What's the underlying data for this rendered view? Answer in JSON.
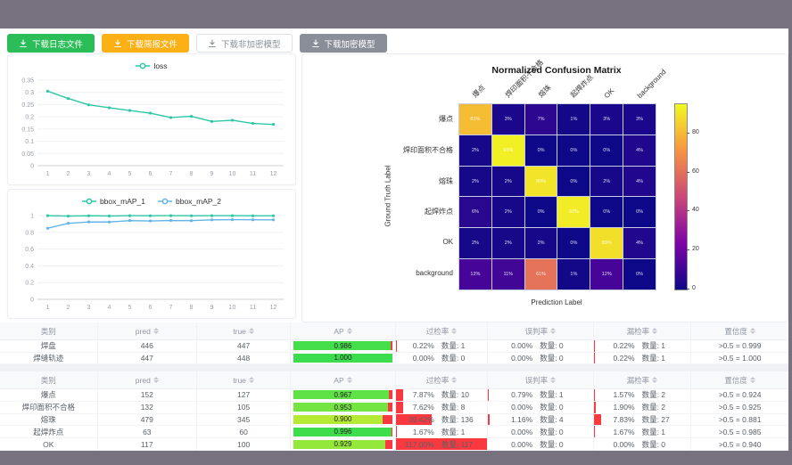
{
  "palette": {
    "frame": "#787180",
    "accent_teal": "#2ec7a5",
    "accent_blue": "#63b4e4",
    "btn_green": "#2bbe58",
    "btn_orange": "#fbb016",
    "btn_gray": "#8a8e98",
    "bar_red": "#f9383f"
  },
  "toolbar": {
    "buttons": [
      {
        "label": "下载日志文件",
        "style": "green"
      },
      {
        "label": "下载简报文件",
        "style": "orange"
      },
      {
        "label": "下载非加密模型",
        "style": "plain"
      },
      {
        "label": "下载加密模型",
        "style": "gray"
      }
    ]
  },
  "chart_data": [
    {
      "id": "loss",
      "type": "line",
      "legend": [
        "loss"
      ],
      "x": [
        1,
        2,
        3,
        4,
        5,
        6,
        7,
        8,
        9,
        10,
        11,
        12
      ],
      "series": [
        {
          "name": "loss",
          "color": "#2ec7a5",
          "values": [
            0.305,
            0.275,
            0.249,
            0.237,
            0.226,
            0.215,
            0.197,
            0.202,
            0.181,
            0.186,
            0.173,
            0.169
          ]
        }
      ],
      "ylim": [
        0,
        0.35
      ],
      "ytick_values": [
        0,
        0.05,
        0.1,
        0.15,
        0.2,
        0.25,
        0.3,
        0.35
      ],
      "ytick_labels": [
        "0",
        "0.05",
        "0.1",
        "0.15",
        "0.2",
        "0.25",
        "0.3",
        "0.35"
      ],
      "grid": true,
      "legend_position": "top"
    },
    {
      "id": "bbox_mAP",
      "type": "line",
      "legend": [
        "bbox_mAP_1",
        "bbox_mAP_2"
      ],
      "x": [
        1,
        2,
        3,
        4,
        5,
        6,
        7,
        8,
        9,
        10,
        11,
        12
      ],
      "series": [
        {
          "name": "bbox_mAP_1",
          "color": "#2ec7a5",
          "values": [
            0.999,
            0.994,
            0.998,
            0.995,
            0.999,
            0.998,
            0.999,
            0.998,
            0.999,
            0.999,
            0.998,
            0.998
          ]
        },
        {
          "name": "bbox_mAP_2",
          "color": "#63b4e4",
          "values": [
            0.849,
            0.908,
            0.924,
            0.923,
            0.94,
            0.936,
            0.941,
            0.939,
            0.949,
            0.951,
            0.95,
            0.949
          ]
        }
      ],
      "ylim": [
        0,
        1
      ],
      "ytick_values": [
        0,
        0.2,
        0.4,
        0.6,
        0.8,
        1
      ],
      "ytick_labels": [
        "0",
        "0.2",
        "0.4",
        "0.6",
        "0.8",
        "1"
      ],
      "grid": true,
      "legend_position": "top"
    },
    {
      "id": "confusion",
      "type": "heatmap",
      "title": "Normalized Confusion Matrix",
      "xlabel": "Prediction Label",
      "ylabel": "Ground Truth Label",
      "labels": [
        "爆点",
        "焊印面积不合格",
        "熔珠",
        "起焊炸点",
        "OK",
        "background"
      ],
      "values_percent": [
        [
          81,
          3,
          7,
          1,
          3,
          3
        ],
        [
          2,
          93,
          0,
          0,
          0,
          4
        ],
        [
          2,
          2,
          90,
          0,
          2,
          4
        ],
        [
          6,
          2,
          0,
          92,
          0,
          0
        ],
        [
          2,
          2,
          2,
          0,
          89,
          4
        ],
        [
          12,
          11,
          61,
          1,
          12,
          0
        ]
      ],
      "colormap": "plasma",
      "vmax": 95,
      "colorbar_ticks": [
        0,
        20,
        40,
        60,
        80
      ]
    }
  ],
  "tables": [
    {
      "headers": [
        "类别",
        "pred",
        "true",
        "AP",
        "过检率",
        "误判率",
        "漏检率",
        "置信度"
      ],
      "rows": [
        {
          "category": "焊盘",
          "pred": "446",
          "true": "447",
          "ap": "0.986",
          "ap_width": "98.6%",
          "ap_color": "#45de4b",
          "over_pct": "0.22%",
          "over_count": "数量: 1",
          "over_width": "0.22%",
          "mis_pct": "0.00%",
          "mis_count": "数量: 0",
          "mis_width": "0%",
          "miss_pct": "0.22%",
          "miss_count": "数量: 1",
          "miss_width": "0.22%",
          "conf": ">0.5 = 0.999"
        },
        {
          "category": "焊缝轨迹",
          "pred": "447",
          "true": "448",
          "ap": "1.000",
          "ap_width": "100%",
          "ap_color": "#3bdc4d",
          "over_pct": "0.00%",
          "over_count": "数量: 0",
          "over_width": "0%",
          "mis_pct": "0.00%",
          "mis_count": "数量: 0",
          "mis_width": "0%",
          "miss_pct": "0.22%",
          "miss_count": "数量: 1",
          "miss_width": "0.22%",
          "conf": ">0.5 = 1.000"
        }
      ]
    },
    {
      "headers": [
        "类别",
        "pred",
        "true",
        "AP",
        "过检率",
        "误判率",
        "漏检率",
        "置信度"
      ],
      "rows": [
        {
          "category": "爆点",
          "pred": "152",
          "true": "127",
          "ap": "0.967",
          "ap_width": "96.7%",
          "ap_color": "#5fe246",
          "over_pct": "7.87%",
          "over_count": "数量: 10",
          "over_width": "7.87%",
          "mis_pct": "0.79%",
          "mis_count": "数量: 1",
          "mis_width": "0.79%",
          "miss_pct": "1.57%",
          "miss_count": "数量: 2",
          "miss_width": "1.57%",
          "conf": ">0.5 = 0.924"
        },
        {
          "category": "焊印面积不合格",
          "pred": "132",
          "true": "105",
          "ap": "0.953",
          "ap_width": "95.3%",
          "ap_color": "#74e442",
          "over_pct": "7.62%",
          "over_count": "数量: 8",
          "over_width": "7.62%",
          "mis_pct": "0.00%",
          "mis_count": "数量: 0",
          "mis_width": "0%",
          "miss_pct": "1.90%",
          "miss_count": "数量: 2",
          "miss_width": "1.9%",
          "conf": ">0.5 = 0.925"
        },
        {
          "category": "熔珠",
          "pred": "479",
          "true": "345",
          "ap": "0.900",
          "ap_width": "90%",
          "ap_color": "#b4e934",
          "over_pct": "39.42%",
          "over_count": "数量: 136",
          "over_width": "39.42%",
          "mis_pct": "1.16%",
          "mis_count": "数量: 4",
          "mis_width": "1.16%",
          "miss_pct": "7.83%",
          "miss_count": "数量: 27",
          "miss_width": "7.83%",
          "conf": ">0.5 = 0.881"
        },
        {
          "category": "起焊炸点",
          "pred": "63",
          "true": "60",
          "ap": "0.996",
          "ap_width": "99.6%",
          "ap_color": "#3edd4c",
          "over_pct": "1.67%",
          "over_count": "数量: 1",
          "over_width": "1.67%",
          "mis_pct": "0.00%",
          "mis_count": "数量: 0",
          "mis_width": "0%",
          "miss_pct": "1.67%",
          "miss_count": "数量: 1",
          "miss_width": "1.67%",
          "conf": ">0.5 = 0.985"
        },
        {
          "category": "OK",
          "pred": "117",
          "true": "100",
          "ap": "0.929",
          "ap_width": "92.9%",
          "ap_color": "#93e83b",
          "over_pct": "117.00%",
          "over_count": "数量: 117",
          "over_width": "100%",
          "mis_pct": "0.00%",
          "mis_count": "数量: 0",
          "mis_width": "0%",
          "miss_pct": "0.00%",
          "miss_count": "数量: 0",
          "miss_width": "0%",
          "conf": ">0.5 = 0.940"
        }
      ]
    }
  ]
}
